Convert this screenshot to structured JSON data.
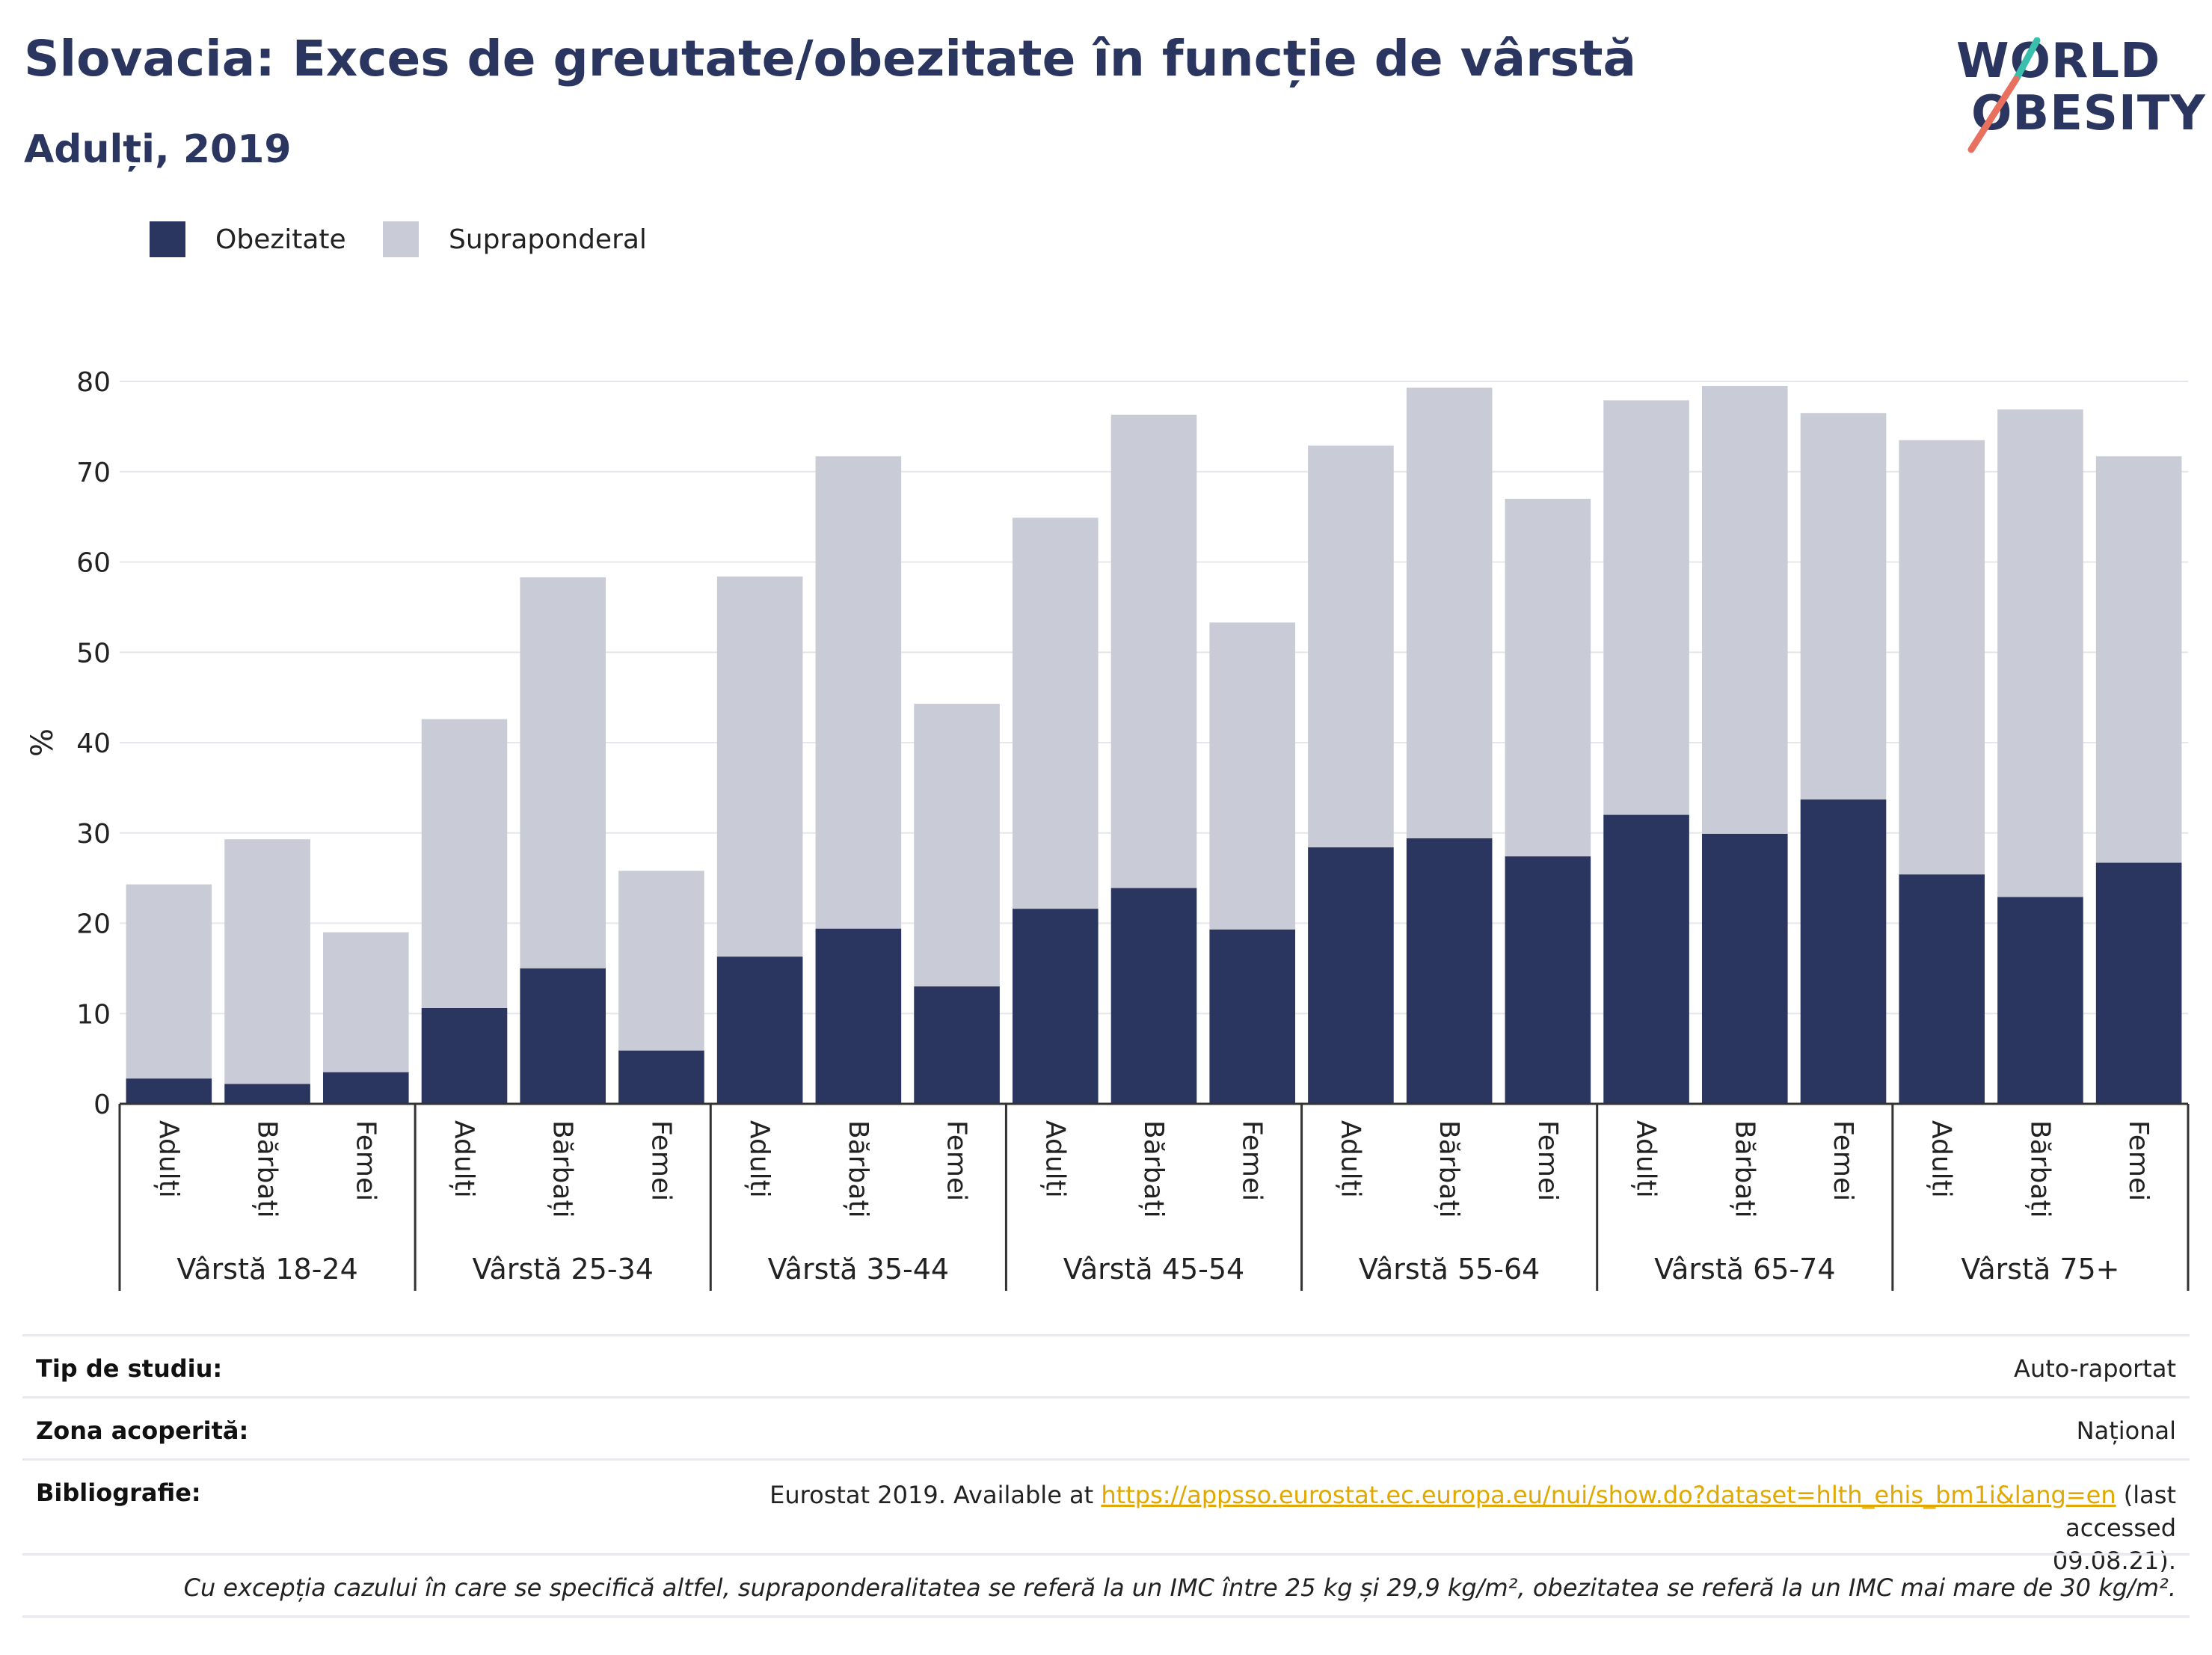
{
  "title": "Slovacia: Exces de greutate/obezitate în funcție de vârstă",
  "subtitle": "Adulți, 2019",
  "logo": {
    "line1": "WORLD",
    "line2": "OBESITY"
  },
  "legend": [
    {
      "name": "Obezitate",
      "color": "#2a3560"
    },
    {
      "name": "Supraponderal",
      "color": "#c9cbd6"
    }
  ],
  "chart_data": {
    "type": "bar",
    "stacked": true,
    "ylabel": "%",
    "ylim": [
      0,
      80
    ],
    "yticks": [
      0,
      10,
      20,
      30,
      40,
      50,
      60,
      70,
      80
    ],
    "grid": true,
    "legend_position": "top-left",
    "groups": [
      "Vârstă 18-24",
      "Vârstă 25-34",
      "Vârstă 35-44",
      "Vârstă 45-54",
      "Vârstă 55-64",
      "Vârstă 65-74",
      "Vârstă 75+"
    ],
    "subcategories": [
      "Adulți",
      "Bărbați",
      "Femei"
    ],
    "series": [
      {
        "name": "Obezitate",
        "color": "#2a3560",
        "values": [
          2.8,
          2.2,
          3.5,
          10.6,
          15.0,
          5.9,
          16.3,
          19.4,
          13.0,
          21.6,
          23.9,
          19.3,
          28.4,
          29.4,
          27.4,
          32.0,
          29.9,
          33.7,
          25.4,
          22.9,
          26.7
        ]
      },
      {
        "name": "Supraponderal",
        "color": "#c9cbd6",
        "values": [
          21.5,
          27.1,
          15.5,
          32.0,
          43.3,
          19.9,
          42.1,
          52.3,
          31.3,
          43.3,
          52.4,
          34.0,
          44.5,
          49.9,
          39.6,
          45.9,
          49.6,
          42.8,
          48.1,
          54.0,
          45.0
        ]
      }
    ]
  },
  "info": {
    "study_type_label": "Tip de studiu:",
    "study_type_value": "Auto-raportat",
    "coverage_label": "Zona acoperită:",
    "coverage_value": "Național",
    "bibliography_label": "Bibliografie:",
    "bibliography_prefix": "Eurostat 2019. Available at ",
    "bibliography_link": "https://appsso.eurostat.ec.europa.eu/nui/show.do?dataset=hlth_ehis_bm1i&lang=en",
    "bibliography_suffix": " (last accessed",
    "bibliography_date": "09.08.21).",
    "note": "Cu excepția cazului în care se specifică altfel, supraponderalitatea se referă la un IMC între 25 kg și 29,9 kg/m², obezitatea se referă la un IMC mai mare de 30 kg/m²."
  }
}
